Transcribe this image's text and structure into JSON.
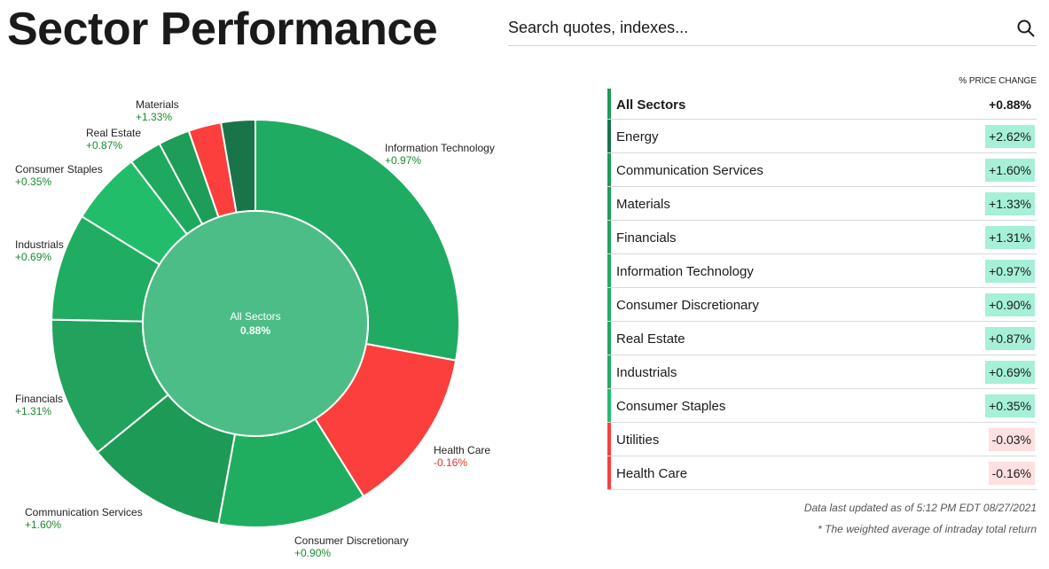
{
  "page": {
    "title": "Sector Performance"
  },
  "search": {
    "placeholder": "Search quotes, indexes...",
    "icon": "search-icon"
  },
  "chart_data": {
    "type": "pie",
    "center_label": "All Sectors",
    "center_value": "0.88%",
    "segments": [
      {
        "name": "Information Technology",
        "value": "+0.97%",
        "weight": 27.9,
        "color": "#20ab63"
      },
      {
        "name": "Health Care",
        "value": "-0.16%",
        "weight": 13.2,
        "color": "#fb3f3c"
      },
      {
        "name": "Consumer Discretionary",
        "value": "+0.90%",
        "weight": 11.8,
        "color": "#1fae60"
      },
      {
        "name": "Communication Services",
        "value": "+1.60%",
        "weight": 11.2,
        "color": "#1e9a57"
      },
      {
        "name": "Financials",
        "value": "+1.31%",
        "weight": 11.2,
        "color": "#21a35d"
      },
      {
        "name": "Industrials",
        "value": "+0.69%",
        "weight": 8.5,
        "color": "#20ac61"
      },
      {
        "name": "Consumer Staples",
        "value": "+0.35%",
        "weight": 5.8,
        "color": "#22bd6b"
      },
      {
        "name": "Real Estate",
        "value": "+0.87%",
        "weight": 2.6,
        "color": "#1fa95e"
      },
      {
        "name": "Materials",
        "value": "+1.33%",
        "weight": 2.5,
        "color": "#1e9d58"
      },
      {
        "name": "Utilities",
        "value": "-0.03%",
        "weight": 2.6,
        "color": "#fb3f3c"
      },
      {
        "name": "Energy",
        "value": "+2.62%",
        "weight": 2.7,
        "color": "#19744a"
      }
    ]
  },
  "chart_labels": [
    {
      "name": "Information Technology",
      "value": "+0.97%",
      "sign": "pos"
    },
    {
      "name": "Health Care",
      "value": "-0.16%",
      "sign": "neg"
    },
    {
      "name": "Consumer Discretionary",
      "value": "+0.90%",
      "sign": "pos"
    },
    {
      "name": "Communication Services",
      "value": "+1.60%",
      "sign": "pos"
    },
    {
      "name": "Financials",
      "value": "+1.31%",
      "sign": "pos"
    },
    {
      "name": "Industrials",
      "value": "+0.69%",
      "sign": "pos"
    },
    {
      "name": "Consumer Staples",
      "value": "+0.35%",
      "sign": "pos"
    },
    {
      "name": "Real Estate",
      "value": "+0.87%",
      "sign": "pos"
    },
    {
      "name": "Materials",
      "value": "+1.33%",
      "sign": "pos"
    }
  ],
  "table": {
    "header": "% PRICE CHANGE",
    "rows": [
      {
        "name": "All Sectors",
        "value": "+0.88%",
        "sign": "pos",
        "bar": "#1e9a57"
      },
      {
        "name": "Energy",
        "value": "+2.62%",
        "sign": "pos",
        "bar": "#19744a"
      },
      {
        "name": "Communication Services",
        "value": "+1.60%",
        "sign": "pos",
        "bar": "#1e9a57"
      },
      {
        "name": "Materials",
        "value": "+1.33%",
        "sign": "pos",
        "bar": "#1e9d58"
      },
      {
        "name": "Financials",
        "value": "+1.31%",
        "sign": "pos",
        "bar": "#21a35d"
      },
      {
        "name": "Information Technology",
        "value": "+0.97%",
        "sign": "pos",
        "bar": "#20ab63"
      },
      {
        "name": "Consumer Discretionary",
        "value": "+0.90%",
        "sign": "pos",
        "bar": "#1fae60"
      },
      {
        "name": "Real Estate",
        "value": "+0.87%",
        "sign": "pos",
        "bar": "#1fa95e"
      },
      {
        "name": "Industrials",
        "value": "+0.69%",
        "sign": "pos",
        "bar": "#20ac61"
      },
      {
        "name": "Consumer Staples",
        "value": "+0.35%",
        "sign": "pos",
        "bar": "#22bd6b"
      },
      {
        "name": "Utilities",
        "value": "-0.03%",
        "sign": "neg",
        "bar": "#fb3f3c"
      },
      {
        "name": "Health Care",
        "value": "-0.16%",
        "sign": "neg",
        "bar": "#fb3f3c"
      }
    ]
  },
  "footer": {
    "updated": "Data last updated as of 5:12 PM EDT 08/27/2021",
    "note": "* The weighted average of intraday total return"
  },
  "colors": {
    "positive_text": "#1a8a2e",
    "negative_text": "#e0352f",
    "positive_badge": "#a6f0d8",
    "negative_badge": "#fde0df",
    "center_fill": "#4cbd86"
  }
}
